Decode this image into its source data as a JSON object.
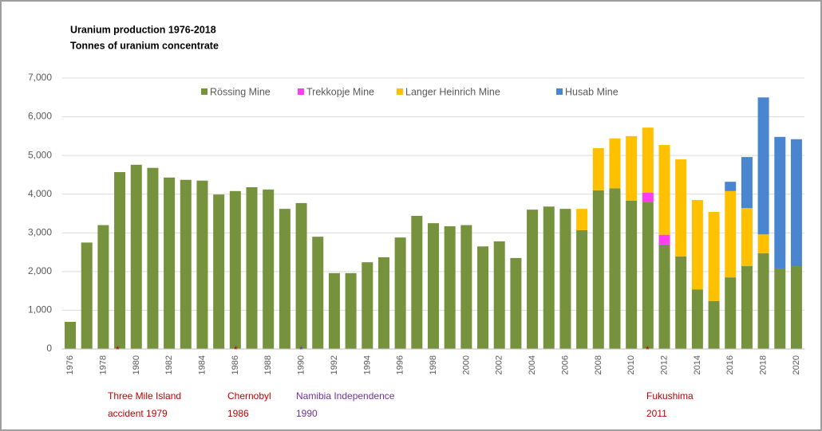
{
  "chart_data": {
    "type": "stacked_bar",
    "title": "Uranium production 1976-2018",
    "subtitle": "Tonnes of uranium concentrate",
    "categories": [
      "1976",
      null,
      "1978",
      null,
      "1980",
      null,
      "1982",
      null,
      "1984",
      null,
      "1986",
      null,
      "1988",
      null,
      "1990",
      null,
      "1992",
      null,
      "1994",
      null,
      "1996",
      null,
      "1998",
      null,
      "2000",
      null,
      "2002",
      null,
      "2004",
      null,
      "2006",
      null,
      "2008",
      null,
      "2010",
      null,
      "2012",
      null,
      "2014",
      null,
      "2016",
      null,
      "2018",
      null,
      "2020"
    ],
    "series": [
      {
        "name": "Rössing Mine",
        "color": "#76923c",
        "values": [
          700,
          2750,
          3200,
          4570,
          4760,
          4680,
          4430,
          4370,
          4350,
          3990,
          4080,
          4180,
          4120,
          3620,
          3770,
          2900,
          1960,
          1960,
          2240,
          2370,
          2880,
          3440,
          3250,
          3170,
          3200,
          2650,
          2780,
          2350,
          3600,
          3680,
          3620,
          3070,
          4100,
          4150,
          3830,
          3800,
          2700,
          2390,
          1540,
          1240,
          1850,
          2140,
          2470,
          2080,
          2140
        ]
      },
      {
        "name": "Trekkopje Mine",
        "color": "#ff3cf0",
        "values": [
          null,
          null,
          null,
          null,
          null,
          null,
          null,
          null,
          null,
          null,
          null,
          null,
          null,
          null,
          null,
          null,
          null,
          null,
          null,
          null,
          null,
          null,
          null,
          null,
          null,
          null,
          null,
          null,
          null,
          null,
          null,
          null,
          null,
          null,
          null,
          240,
          250,
          null,
          null,
          null,
          null,
          null,
          null,
          null,
          null
        ]
      },
      {
        "name": "Langer Heinrich Mine",
        "color": "#ffc000",
        "values": [
          null,
          null,
          null,
          null,
          null,
          null,
          null,
          null,
          null,
          null,
          null,
          null,
          null,
          null,
          null,
          null,
          null,
          null,
          null,
          null,
          null,
          null,
          null,
          null,
          null,
          null,
          null,
          null,
          null,
          null,
          null,
          550,
          1090,
          1290,
          1670,
          1680,
          2320,
          2510,
          2310,
          2300,
          2230,
          1500,
          490,
          null,
          null
        ]
      },
      {
        "name": "Husab Mine",
        "color": "#4a86d0",
        "values": [
          null,
          null,
          null,
          null,
          null,
          null,
          null,
          null,
          null,
          null,
          null,
          null,
          null,
          null,
          null,
          null,
          null,
          null,
          null,
          null,
          null,
          null,
          null,
          null,
          null,
          null,
          null,
          null,
          null,
          null,
          null,
          null,
          null,
          null,
          null,
          null,
          null,
          null,
          null,
          null,
          240,
          1320,
          3540,
          3400,
          3280
        ]
      }
    ],
    "ylim": [
      0,
      7000
    ],
    "yticks": [
      0,
      {
        "value": 1000,
        "label": "1,000"
      },
      {
        "value": 2000,
        "label": "2,000"
      },
      {
        "value": 3000,
        "label": "3,000"
      },
      {
        "value": 4000,
        "label": "4,000"
      },
      {
        "value": 5000,
        "label": "5,000"
      },
      {
        "value": 6000,
        "label": "6,000"
      },
      {
        "value": 7000,
        "label": "7,000"
      }
    ],
    "grid": true,
    "annotations": [
      "Three Mile Island accident 1979",
      "Chernobyl 1986",
      "Namibia Independence 1990",
      "Fukushima 2011"
    ]
  }
}
